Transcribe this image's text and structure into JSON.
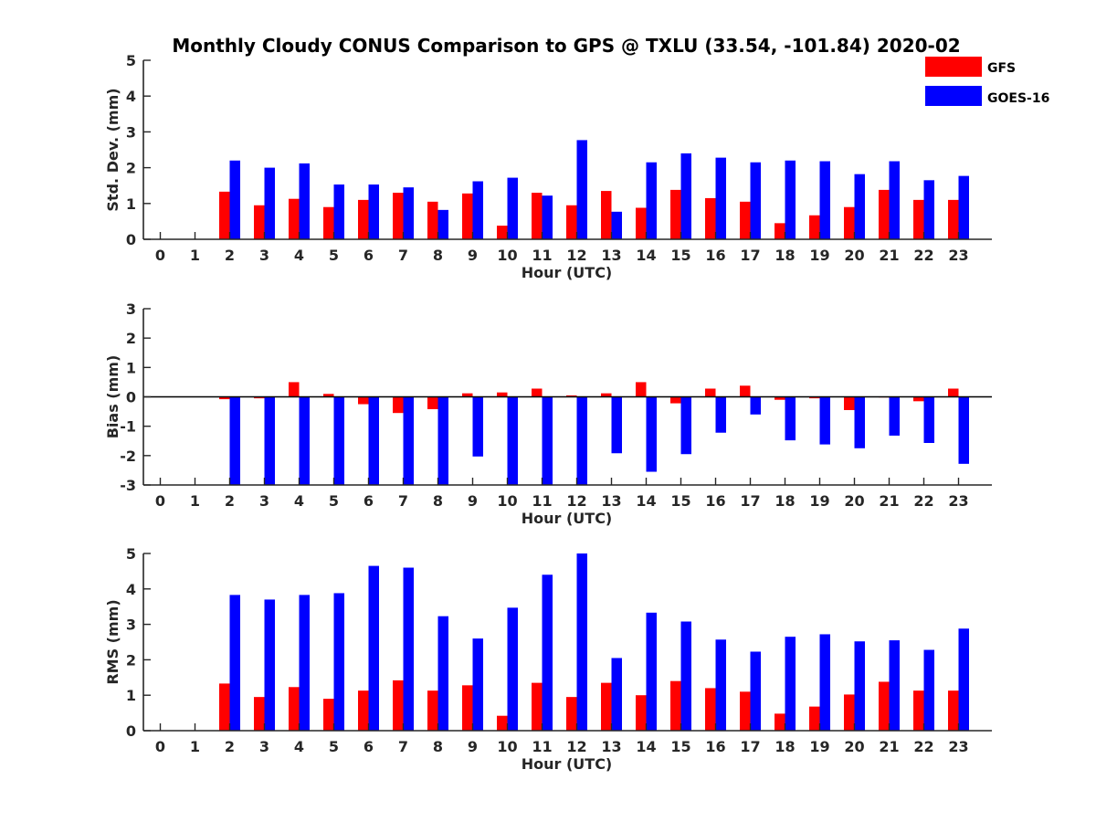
{
  "chart_data": {
    "title": "Monthly Cloudy CONUS Comparison to GPS @ TXLU (33.54, -101.84) 2020-02",
    "type": "bar",
    "legend": {
      "placement": "top-right",
      "entries": [
        {
          "name": "GFS",
          "color": "#ff0000"
        },
        {
          "name": "GOES-16",
          "color": "#0000ff"
        }
      ]
    },
    "categories": [
      "0",
      "1",
      "2",
      "3",
      "4",
      "5",
      "6",
      "7",
      "8",
      "9",
      "10",
      "11",
      "12",
      "13",
      "14",
      "15",
      "16",
      "17",
      "18",
      "19",
      "20",
      "21",
      "22",
      "23"
    ],
    "panels": [
      {
        "id": "std",
        "ylabel": "Std. Dev. (mm)",
        "xlabel": "Hour (UTC)",
        "ylim": [
          0,
          5
        ],
        "yticks": [
          0,
          1,
          2,
          3,
          4,
          5
        ],
        "series": [
          {
            "name": "GFS",
            "color": "#ff0000",
            "values": [
              null,
              null,
              1.33,
              0.95,
              1.13,
              0.9,
              1.1,
              1.3,
              1.05,
              1.28,
              0.38,
              1.3,
              0.95,
              1.35,
              0.88,
              1.38,
              1.15,
              1.05,
              0.45,
              0.67,
              0.9,
              1.38,
              1.1,
              1.1
            ]
          },
          {
            "name": "GOES-16",
            "color": "#0000ff",
            "values": [
              null,
              null,
              2.2,
              2.0,
              2.12,
              1.53,
              1.53,
              1.45,
              0.82,
              1.62,
              1.72,
              1.22,
              2.77,
              0.77,
              2.15,
              2.4,
              2.28,
              2.15,
              2.2,
              2.18,
              1.82,
              2.18,
              1.65,
              1.77
            ]
          }
        ]
      },
      {
        "id": "bias",
        "ylabel": "Bias (mm)",
        "xlabel": "Hour (UTC)",
        "ylim": [
          -3,
          3
        ],
        "yticks": [
          -3,
          -2,
          -1,
          0,
          1,
          2,
          3
        ],
        "series": [
          {
            "name": "GFS",
            "color": "#ff0000",
            "values": [
              null,
              null,
              -0.08,
              -0.05,
              0.5,
              0.1,
              -0.25,
              -0.55,
              -0.42,
              0.12,
              0.15,
              0.28,
              0.05,
              0.12,
              0.5,
              -0.22,
              0.28,
              0.38,
              -0.1,
              -0.05,
              -0.45,
              -0.02,
              -0.15,
              0.28
            ]
          },
          {
            "name": "GOES-16",
            "color": "#0000ff",
            "values": [
              null,
              null,
              -3.0,
              -3.0,
              -3.0,
              -3.0,
              -3.0,
              -3.0,
              -3.0,
              -2.03,
              -3.0,
              -3.0,
              -3.0,
              -1.92,
              -2.55,
              -1.95,
              -1.22,
              -0.6,
              -1.48,
              -1.62,
              -1.75,
              -1.32,
              -1.57,
              -2.28
            ]
          }
        ]
      },
      {
        "id": "rms",
        "ylabel": "RMS (mm)",
        "xlabel": "Hour (UTC)",
        "ylim": [
          0,
          5
        ],
        "yticks": [
          0,
          1,
          2,
          3,
          4,
          5
        ],
        "series": [
          {
            "name": "GFS",
            "color": "#ff0000",
            "values": [
              null,
              null,
              1.33,
              0.95,
              1.23,
              0.9,
              1.13,
              1.42,
              1.13,
              1.28,
              0.42,
              1.35,
              0.95,
              1.35,
              1.0,
              1.4,
              1.2,
              1.1,
              0.48,
              0.68,
              1.02,
              1.38,
              1.13,
              1.13
            ]
          },
          {
            "name": "GOES-16",
            "color": "#0000ff",
            "values": [
              null,
              null,
              3.83,
              3.7,
              3.83,
              3.88,
              4.65,
              4.6,
              3.23,
              2.6,
              3.47,
              4.4,
              5.0,
              2.05,
              3.33,
              3.08,
              2.57,
              2.23,
              2.65,
              2.72,
              2.52,
              2.55,
              2.28,
              2.88
            ]
          }
        ]
      }
    ]
  }
}
